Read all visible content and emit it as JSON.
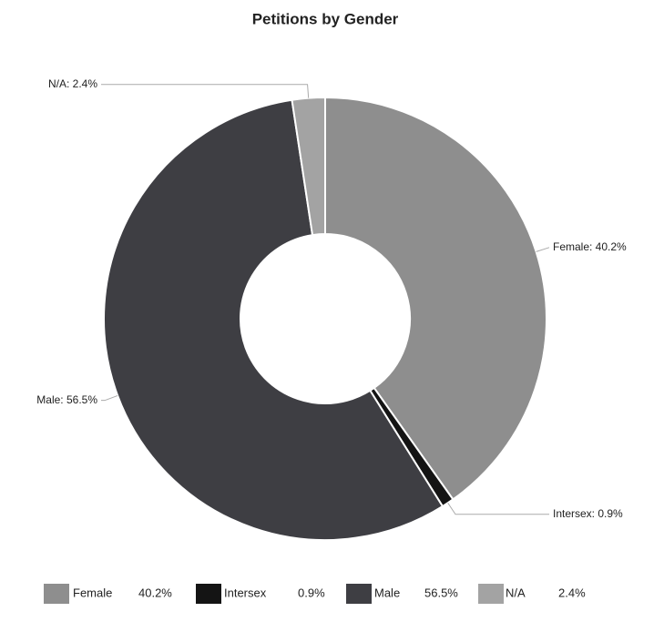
{
  "chart_data": {
    "type": "donut",
    "title": "Petitions by Gender",
    "categories": [
      "Female",
      "Intersex",
      "Male",
      "N/A"
    ],
    "values": [
      40.2,
      0.9,
      56.5,
      2.4
    ],
    "value_labels": [
      "40.2%",
      "0.9%",
      "56.5%",
      "2.4%"
    ],
    "slice_labels": [
      "Female: 40.2%",
      "Intersex: 0.9%",
      "Male: 56.5%",
      "N/A: 2.4%"
    ],
    "colors": [
      "#8e8e8e",
      "#141414",
      "#3e3e43",
      "#a3a3a3"
    ],
    "legend": "bottom"
  }
}
